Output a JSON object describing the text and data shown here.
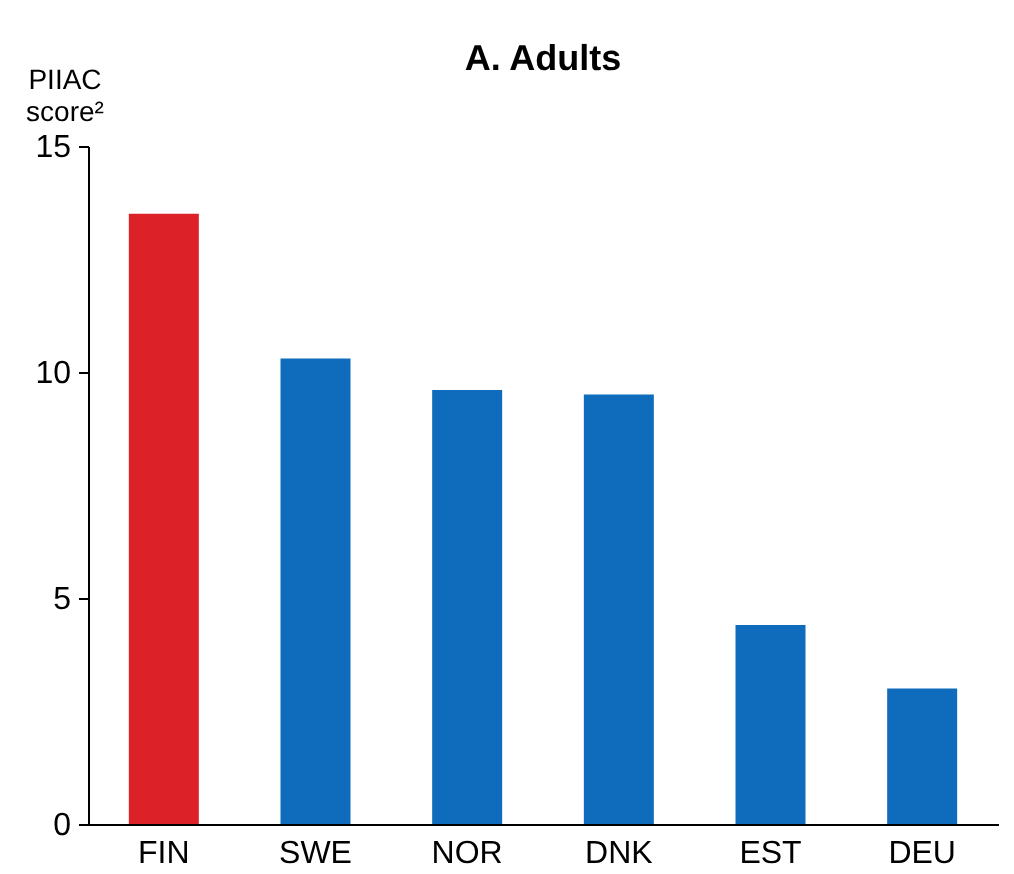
{
  "chart_data": {
    "type": "bar",
    "title": "A. Adults",
    "ylabel": "PIIAC score²",
    "categories": [
      "FIN",
      "SWE",
      "NOR",
      "DNK",
      "EST",
      "DEU"
    ],
    "values": [
      13.5,
      10.3,
      9.6,
      9.5,
      4.4,
      3.0
    ],
    "colors": [
      "#dc2228",
      "#0f6cbd",
      "#0f6cbd",
      "#0f6cbd",
      "#0f6cbd",
      "#0f6cbd"
    ],
    "ylim": [
      0,
      15
    ],
    "yticks": [
      0,
      5,
      10,
      15
    ],
    "grid": false
  }
}
